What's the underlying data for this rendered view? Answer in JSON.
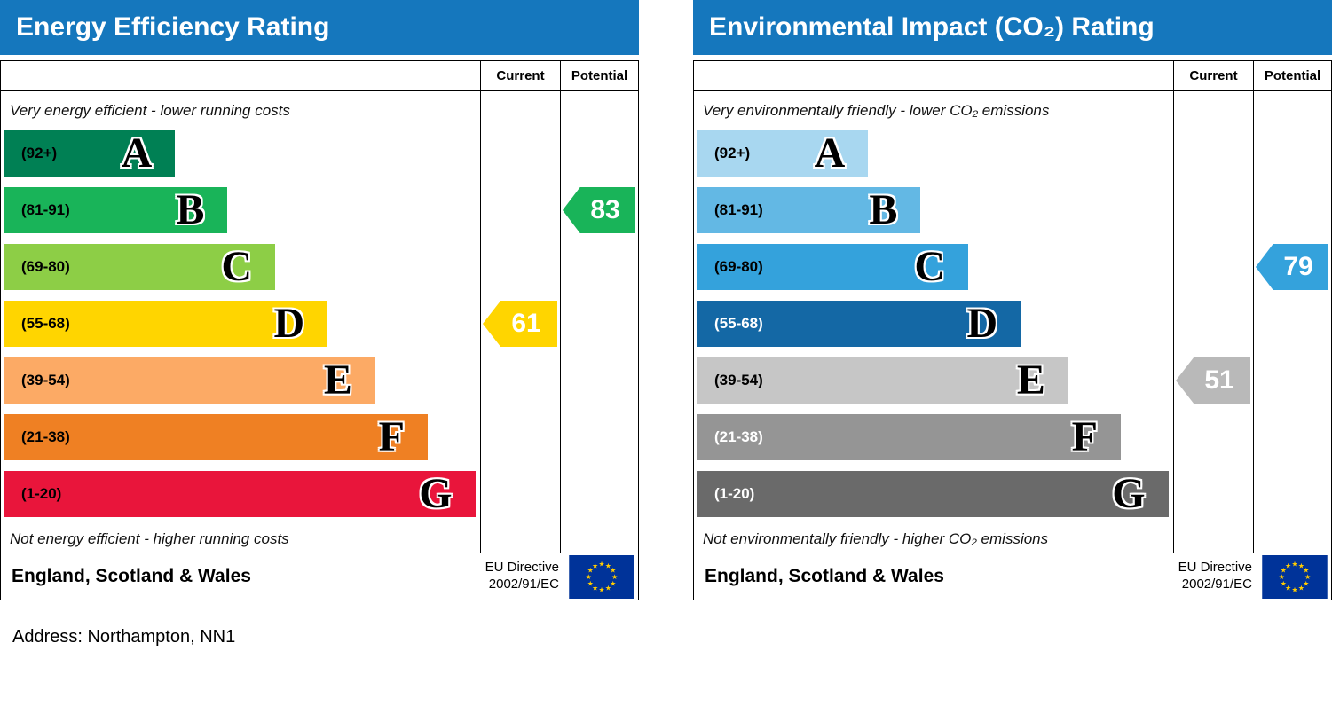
{
  "page": {
    "address": "Address: Northampton, NN1"
  },
  "theme": {
    "header_bg": "#1577bd",
    "header_text": "#ffffff",
    "flag_bg": "#003399",
    "flag_star": "#ffcc00"
  },
  "chart_data": [
    {
      "type": "bar",
      "variant": "epc-energy-efficiency",
      "title": "Energy Efficiency Rating",
      "columns": {
        "current": "Current",
        "potential": "Potential"
      },
      "top_note": "Very energy efficient - lower running costs",
      "bottom_note": "Not energy efficient - higher running costs",
      "footer": {
        "region": "England, Scotland & Wales",
        "directive": [
          "EU Directive",
          "2002/91/EC"
        ]
      },
      "bands": [
        {
          "letter": "A",
          "label": "(92+)",
          "color": "#008054",
          "text_color": "#000000",
          "width_pct": 36
        },
        {
          "letter": "B",
          "label": "(81-91)",
          "color": "#19b459",
          "text_color": "#000000",
          "width_pct": 47
        },
        {
          "letter": "C",
          "label": "(69-80)",
          "color": "#8dce46",
          "text_color": "#000000",
          "width_pct": 57
        },
        {
          "letter": "D",
          "label": "(55-68)",
          "color": "#ffd500",
          "text_color": "#000000",
          "width_pct": 68
        },
        {
          "letter": "E",
          "label": "(39-54)",
          "color": "#fcaa65",
          "text_color": "#000000",
          "width_pct": 78
        },
        {
          "letter": "F",
          "label": "(21-38)",
          "color": "#ef8023",
          "text_color": "#000000",
          "width_pct": 89
        },
        {
          "letter": "G",
          "label": "(1-20)",
          "color": "#e9153b",
          "text_color": "#000000",
          "width_pct": 99
        }
      ],
      "current": {
        "value": 61,
        "band": "D",
        "band_index": 3,
        "color": "#ffd500",
        "text_color": "#ffffff"
      },
      "potential": {
        "value": 83,
        "band": "B",
        "band_index": 1,
        "color": "#19b459",
        "text_color": "#ffffff"
      }
    },
    {
      "type": "bar",
      "variant": "epc-environmental-impact",
      "title": "Environmental Impact (CO₂) Rating",
      "columns": {
        "current": "Current",
        "potential": "Potential"
      },
      "top_note": "Very environmentally friendly - lower CO₂ emissions",
      "bottom_note": "Not environmentally friendly - higher CO₂ emissions",
      "footer": {
        "region": "England, Scotland & Wales",
        "directive": [
          "EU Directive",
          "2002/91/EC"
        ]
      },
      "bands": [
        {
          "letter": "A",
          "label": "(92+)",
          "color": "#a8d7f0",
          "text_color": "#000000",
          "width_pct": 36
        },
        {
          "letter": "B",
          "label": "(81-91)",
          "color": "#63b8e4",
          "text_color": "#000000",
          "width_pct": 47
        },
        {
          "letter": "C",
          "label": "(69-80)",
          "color": "#34a2dc",
          "text_color": "#000000",
          "width_pct": 57
        },
        {
          "letter": "D",
          "label": "(55-68)",
          "color": "#1468a5",
          "text_color": "#ffffff",
          "width_pct": 68
        },
        {
          "letter": "E",
          "label": "(39-54)",
          "color": "#c6c6c6",
          "text_color": "#000000",
          "width_pct": 78
        },
        {
          "letter": "F",
          "label": "(21-38)",
          "color": "#959595",
          "text_color": "#ffffff",
          "width_pct": 89
        },
        {
          "letter": "G",
          "label": "(1-20)",
          "color": "#6a6a6a",
          "text_color": "#ffffff",
          "width_pct": 99
        }
      ],
      "current": {
        "value": 51,
        "band": "E",
        "band_index": 4,
        "color": "#b9b9b9",
        "text_color": "#ffffff"
      },
      "potential": {
        "value": 79,
        "band": "C",
        "band_index": 2,
        "color": "#34a2dc",
        "text_color": "#ffffff"
      }
    }
  ]
}
